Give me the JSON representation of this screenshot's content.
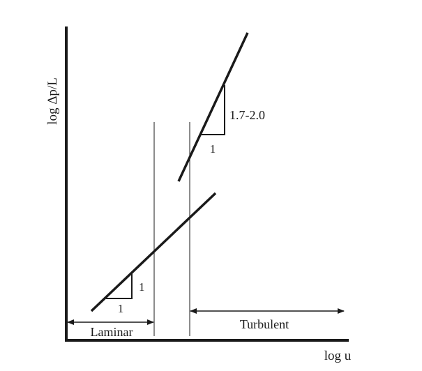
{
  "axes": {
    "x_label": "log u",
    "y_label": "log Δp/L"
  },
  "regions": {
    "laminar": "Laminar",
    "turbulent": "Turbulent"
  },
  "laminar_line": {
    "slope_run": "1",
    "slope_rise": "1"
  },
  "turbulent_line": {
    "slope_run": "1",
    "slope_rise": "1.7-2.0"
  }
}
